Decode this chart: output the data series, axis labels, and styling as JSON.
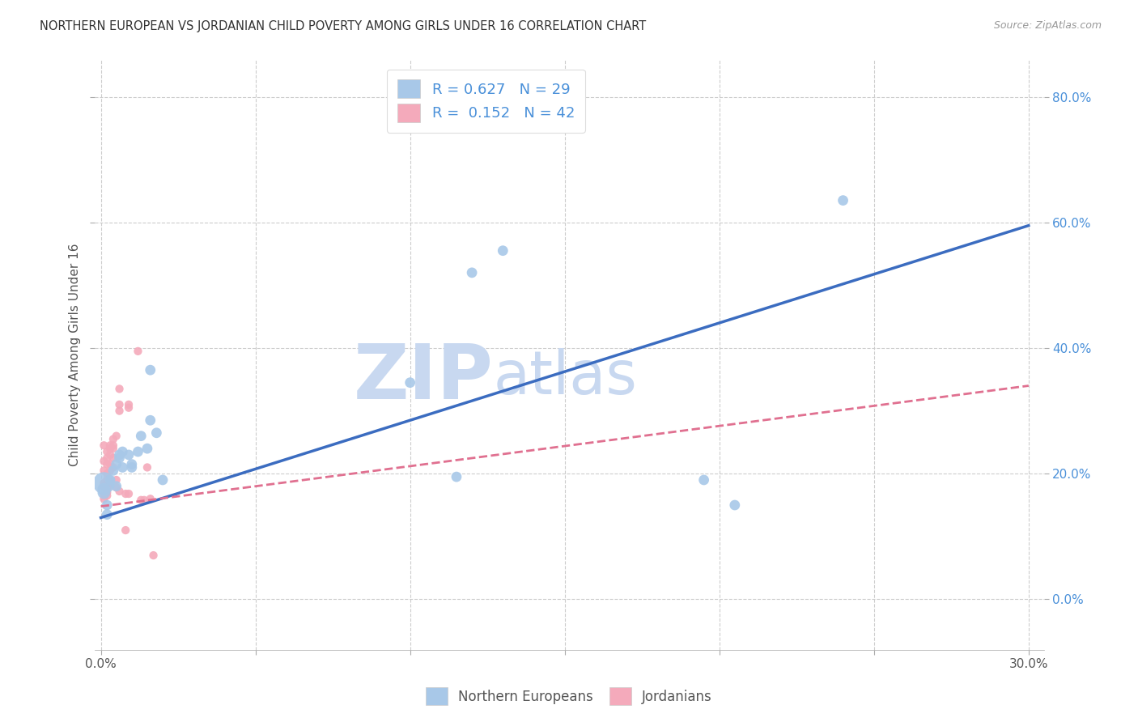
{
  "title": "NORTHERN EUROPEAN VS JORDANIAN CHILD POVERTY AMONG GIRLS UNDER 16 CORRELATION CHART",
  "source": "Source: ZipAtlas.com",
  "ylabel": "Child Poverty Among Girls Under 16",
  "xlim": [
    -0.002,
    0.305
  ],
  "ylim": [
    -0.08,
    0.86
  ],
  "xticks": [
    0.0,
    0.05,
    0.1,
    0.15,
    0.2,
    0.25,
    0.3
  ],
  "yticks": [
    0.0,
    0.2,
    0.4,
    0.6,
    0.8
  ],
  "blue_color": "#A8C8E8",
  "pink_color": "#F4AABB",
  "blue_line_color": "#3B6CC0",
  "pink_line_color": "#E07090",
  "watermark_zip": "ZIP",
  "watermark_atlas": "atlas",
  "watermark_color": "#C8D8F0",
  "watermark_fontsize": 68,
  "blue_scatter": [
    [
      0.001,
      0.185
    ],
    [
      0.001,
      0.175
    ],
    [
      0.001,
      0.17
    ],
    [
      0.002,
      0.15
    ],
    [
      0.002,
      0.135
    ],
    [
      0.003,
      0.19
    ],
    [
      0.004,
      0.205
    ],
    [
      0.005,
      0.18
    ],
    [
      0.005,
      0.215
    ],
    [
      0.006,
      0.225
    ],
    [
      0.006,
      0.23
    ],
    [
      0.007,
      0.21
    ],
    [
      0.007,
      0.235
    ],
    [
      0.009,
      0.23
    ],
    [
      0.01,
      0.215
    ],
    [
      0.01,
      0.21
    ],
    [
      0.012,
      0.235
    ],
    [
      0.013,
      0.26
    ],
    [
      0.015,
      0.24
    ],
    [
      0.016,
      0.365
    ],
    [
      0.016,
      0.285
    ],
    [
      0.018,
      0.265
    ],
    [
      0.02,
      0.19
    ],
    [
      0.1,
      0.345
    ],
    [
      0.115,
      0.195
    ],
    [
      0.12,
      0.52
    ],
    [
      0.13,
      0.555
    ],
    [
      0.195,
      0.19
    ],
    [
      0.205,
      0.15
    ],
    [
      0.24,
      0.635
    ]
  ],
  "blue_big_idx": 0,
  "blue_big_size": 380,
  "blue_med_idx": [
    1,
    2
  ],
  "blue_med_size": 130,
  "blue_scatter_size": 85,
  "pink_scatter": [
    [
      0.001,
      0.245
    ],
    [
      0.001,
      0.22
    ],
    [
      0.001,
      0.205
    ],
    [
      0.001,
      0.185
    ],
    [
      0.001,
      0.18
    ],
    [
      0.001,
      0.165
    ],
    [
      0.001,
      0.16
    ],
    [
      0.002,
      0.235
    ],
    [
      0.002,
      0.225
    ],
    [
      0.002,
      0.215
    ],
    [
      0.002,
      0.2
    ],
    [
      0.002,
      0.19
    ],
    [
      0.002,
      0.178
    ],
    [
      0.002,
      0.17
    ],
    [
      0.002,
      0.165
    ],
    [
      0.003,
      0.245
    ],
    [
      0.003,
      0.24
    ],
    [
      0.003,
      0.23
    ],
    [
      0.003,
      0.215
    ],
    [
      0.003,
      0.205
    ],
    [
      0.003,
      0.188
    ],
    [
      0.003,
      0.18
    ],
    [
      0.004,
      0.255
    ],
    [
      0.004,
      0.245
    ],
    [
      0.004,
      0.24
    ],
    [
      0.004,
      0.225
    ],
    [
      0.004,
      0.21
    ],
    [
      0.005,
      0.26
    ],
    [
      0.005,
      0.19
    ],
    [
      0.005,
      0.178
    ],
    [
      0.006,
      0.335
    ],
    [
      0.006,
      0.31
    ],
    [
      0.006,
      0.3
    ],
    [
      0.006,
      0.172
    ],
    [
      0.008,
      0.168
    ],
    [
      0.008,
      0.11
    ],
    [
      0.009,
      0.31
    ],
    [
      0.009,
      0.305
    ],
    [
      0.009,
      0.168
    ],
    [
      0.012,
      0.395
    ],
    [
      0.013,
      0.158
    ],
    [
      0.014,
      0.158
    ],
    [
      0.015,
      0.21
    ],
    [
      0.016,
      0.16
    ],
    [
      0.017,
      0.07
    ]
  ],
  "pink_scatter_size": 55,
  "blue_line": [
    [
      0.0,
      0.13
    ],
    [
      0.3,
      0.595
    ]
  ],
  "pink_line": [
    [
      0.0,
      0.148
    ],
    [
      0.3,
      0.34
    ]
  ],
  "background_color": "#FFFFFF",
  "grid_color": "#CCCCCC",
  "title_color": "#333333",
  "axis_color": "#555555",
  "right_tick_color": "#4A90D9",
  "legend_label_color": "#4A90D9"
}
